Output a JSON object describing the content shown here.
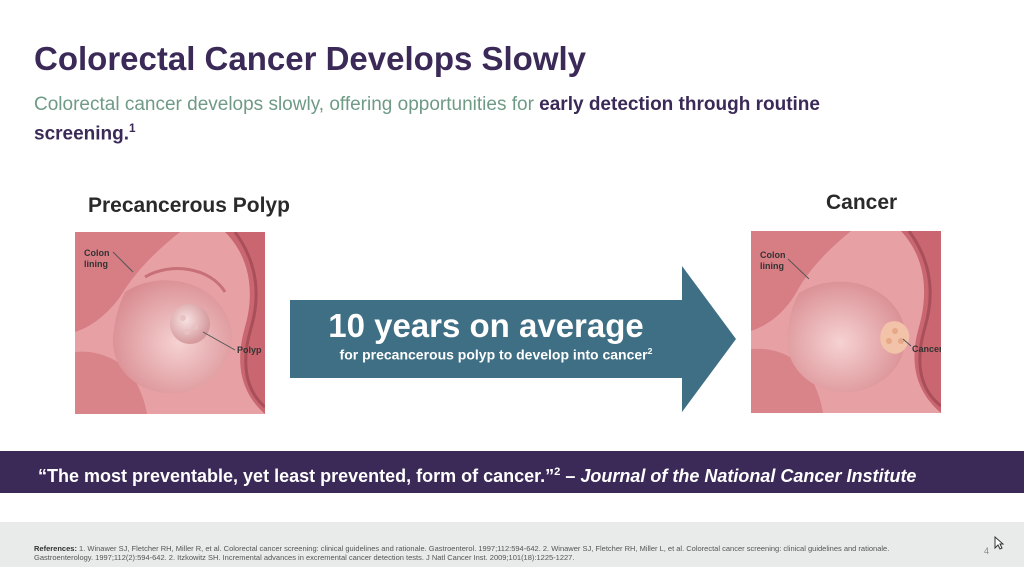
{
  "slide": {
    "title": "Colorectal Cancer Develops Slowly",
    "subtitle": {
      "plain": "Colorectal cancer develops slowly, offering opportunities for ",
      "emphasis": "early detection through routine screening.",
      "sup": "1"
    },
    "left_panel": {
      "heading": "Precancerous Polyp",
      "label_lining_1": "Colon",
      "label_lining_2": "lining",
      "label_feature": "Polyp"
    },
    "right_panel": {
      "heading": "Cancer",
      "label_lining_1": "Colon",
      "label_lining_2": "lining",
      "label_feature": "Cancer"
    },
    "arrow": {
      "main": "10 years on average",
      "sub": "for precancerous polyp to develop into cancer",
      "sub_sup": "2",
      "color": "#3f6f84"
    },
    "banner": {
      "quote": "“The most preventable, yet least prevented, form of cancer.”",
      "quote_sup": "2",
      "dash": " – ",
      "source": "Journal of the National Cancer Institute"
    },
    "footer": {
      "references_lead": "References:",
      "references_text": "1. Winawer SJ, Fletcher RH, Miller R, et al. Colorectal cancer screening: clinical guidelines and rationale. Gastroenterol. 1997;112:594-642. 2. Winawer SJ, Fletcher RH, Miller L, et al. Colorectal cancer screening: clinical guidelines and rationale. Gastroenterology. 1997;112(2):594-642. 2. Itzkowitz SH. Incremental advances in excremental cancer detection tests. J Natl Cancer Inst. 2009;101(18):1225-1227.",
      "page_number": "4"
    },
    "colors": {
      "title": "#3b2a57",
      "subtitle": "#6f9a86",
      "banner": "#3b2a57",
      "arrow": "#3f6f84",
      "tissue": "#d9868b"
    }
  }
}
